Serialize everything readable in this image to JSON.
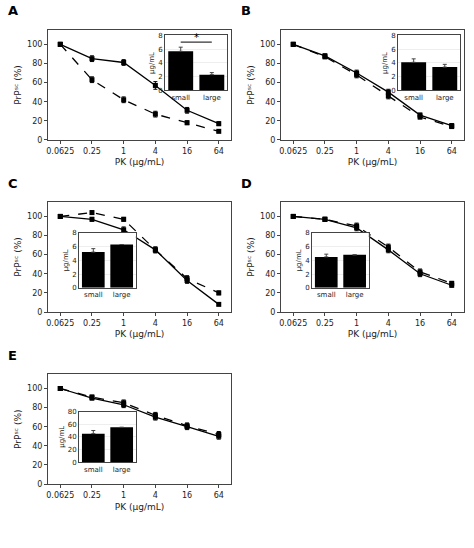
{
  "chart_data": [
    {
      "type": "line",
      "title": "A",
      "xlabel": "PK (μg/mL)",
      "ylabel": "PrPˢᶜ (%)",
      "categories": [
        "0.0625",
        "0.25",
        "1",
        "4",
        "16",
        "64"
      ],
      "ylim": [
        0,
        115
      ],
      "yticks": [
        0,
        20,
        40,
        60,
        80,
        100
      ],
      "grid": false,
      "series": [
        {
          "color": "black",
          "marker": "square",
          "line_style": "solid",
          "values": [
            100,
            85,
            81,
            57,
            31,
            17
          ],
          "errors": [
            2,
            3,
            3,
            4,
            3,
            2
          ]
        },
        {
          "color": "black",
          "marker": "square",
          "line_style": "dashed",
          "values": [
            100,
            63,
            42,
            27,
            18,
            9
          ],
          "errors": [
            2,
            3,
            3,
            3,
            2,
            1
          ]
        }
      ]
    },
    {
      "type": "bar",
      "ylabel": "μg/mL",
      "categories": [
        "small",
        "large"
      ],
      "values": [
        5.7,
        2.3
      ],
      "errors_upper": [
        0.6,
        0.3
      ],
      "color": "black",
      "ylim": [
        0,
        8
      ],
      "yticks": [
        0,
        2,
        4,
        6,
        8
      ],
      "grid": true,
      "annotations": [
        {
          "text": "*"
        }
      ]
    },
    {
      "type": "line",
      "title": "B",
      "xlabel": "PK (μg/mL)",
      "ylabel": "PrPˢᶜ (%)",
      "categories": [
        "0.0625",
        "0.25",
        "1",
        "4",
        "16",
        "64"
      ],
      "ylim": [
        0,
        115
      ],
      "yticks": [
        0,
        20,
        40,
        60,
        80,
        100
      ],
      "grid": false,
      "series": [
        {
          "color": "black",
          "marker": "square",
          "line_style": "solid",
          "values": [
            100,
            88,
            70,
            50,
            26,
            15
          ],
          "errors": [
            2,
            2,
            3,
            3,
            2,
            2
          ]
        },
        {
          "color": "black",
          "marker": "square",
          "line_style": "dashed",
          "values": [
            100,
            87,
            68,
            46,
            24,
            14
          ],
          "errors": [
            2,
            2,
            3,
            3,
            2,
            2
          ]
        }
      ]
    },
    {
      "type": "bar",
      "ylabel": "μg/mL",
      "categories": [
        "small",
        "large"
      ],
      "values": [
        4.1,
        3.4
      ],
      "errors_upper": [
        0.5,
        0.4
      ],
      "color": "black",
      "ylim": [
        0,
        8
      ],
      "yticks": [
        0,
        2,
        4,
        6,
        8
      ],
      "grid": true
    },
    {
      "type": "line",
      "title": "C",
      "xlabel": "PK (μg/mL)",
      "ylabel": "PrPˢᶜ (%)",
      "categories": [
        "0.0625",
        "0.25",
        "1",
        "4",
        "16",
        "64"
      ],
      "ylim": [
        0,
        115
      ],
      "yticks": [
        0,
        20,
        40,
        60,
        80,
        100
      ],
      "grid": false,
      "series": [
        {
          "color": "black",
          "marker": "square",
          "line_style": "solid",
          "values": [
            100,
            97,
            86,
            65,
            33,
            8
          ],
          "errors": [
            2,
            2,
            3,
            3,
            3,
            1
          ]
        },
        {
          "color": "black",
          "marker": "square",
          "line_style": "dashed",
          "values": [
            100,
            104,
            97,
            65,
            35,
            20
          ],
          "errors": [
            2,
            2,
            2,
            3,
            3,
            2
          ]
        }
      ]
    },
    {
      "type": "bar",
      "ylabel": "μg/mL",
      "categories": [
        "small",
        "large"
      ],
      "values": [
        5.2,
        6.3
      ],
      "errors_upper": [
        0.5,
        0.0
      ],
      "color": "black",
      "ylim": [
        0,
        8
      ],
      "yticks": [
        0,
        2,
        4,
        6,
        8
      ],
      "grid": true
    },
    {
      "type": "line",
      "title": "D",
      "xlabel": "PK (μg/mL)",
      "ylabel": "PrPˢᶜ (%)",
      "categories": [
        "0.0625",
        "0.25",
        "1",
        "4",
        "16",
        "64"
      ],
      "ylim": [
        0,
        115
      ],
      "yticks": [
        0,
        20,
        40,
        60,
        80,
        100
      ],
      "grid": false,
      "series": [
        {
          "color": "black",
          "marker": "square",
          "line_style": "solid",
          "values": [
            100,
            97,
            88,
            65,
            40,
            28
          ],
          "errors": [
            2,
            2,
            3,
            3,
            3,
            2
          ]
        },
        {
          "color": "black",
          "marker": "square",
          "line_style": "dashed",
          "values": [
            100,
            97,
            90,
            68,
            42,
            30
          ],
          "errors": [
            2,
            2,
            3,
            3,
            3,
            2
          ]
        }
      ]
    },
    {
      "type": "bar",
      "ylabel": "μg/mL",
      "categories": [
        "small",
        "large"
      ],
      "values": [
        4.5,
        4.8
      ],
      "errors_upper": [
        0.4,
        0.0
      ],
      "color": "black",
      "ylim": [
        0,
        8
      ],
      "yticks": [
        0,
        2,
        4,
        6,
        8
      ],
      "grid": true
    },
    {
      "type": "line",
      "title": "E",
      "xlabel": "PK (μg/mL)",
      "ylabel": "PrPˢᶜ (%)",
      "categories": [
        "0.0625",
        "0.25",
        "1",
        "4",
        "16",
        "64"
      ],
      "ylim": [
        0,
        115
      ],
      "yticks": [
        0,
        20,
        40,
        60,
        80,
        100
      ],
      "grid": false,
      "series": [
        {
          "color": "black",
          "marker": "square",
          "line_style": "solid",
          "values": [
            100,
            90,
            83,
            70,
            60,
            50
          ],
          "errors": [
            2,
            2,
            3,
            3,
            3,
            3
          ]
        },
        {
          "color": "black",
          "marker": "square",
          "line_style": "dashed",
          "values": [
            100,
            91,
            85,
            72,
            61,
            52
          ],
          "errors": [
            2,
            2,
            3,
            3,
            3,
            3
          ]
        }
      ]
    },
    {
      "type": "bar",
      "ylabel": "μg/mL",
      "categories": [
        "small",
        "large"
      ],
      "values": [
        45,
        55
      ],
      "errors_upper": [
        5,
        0
      ],
      "color": "black",
      "ylim": [
        0,
        80
      ],
      "yticks": [
        0,
        20,
        40,
        60,
        80
      ],
      "grid": true
    }
  ]
}
